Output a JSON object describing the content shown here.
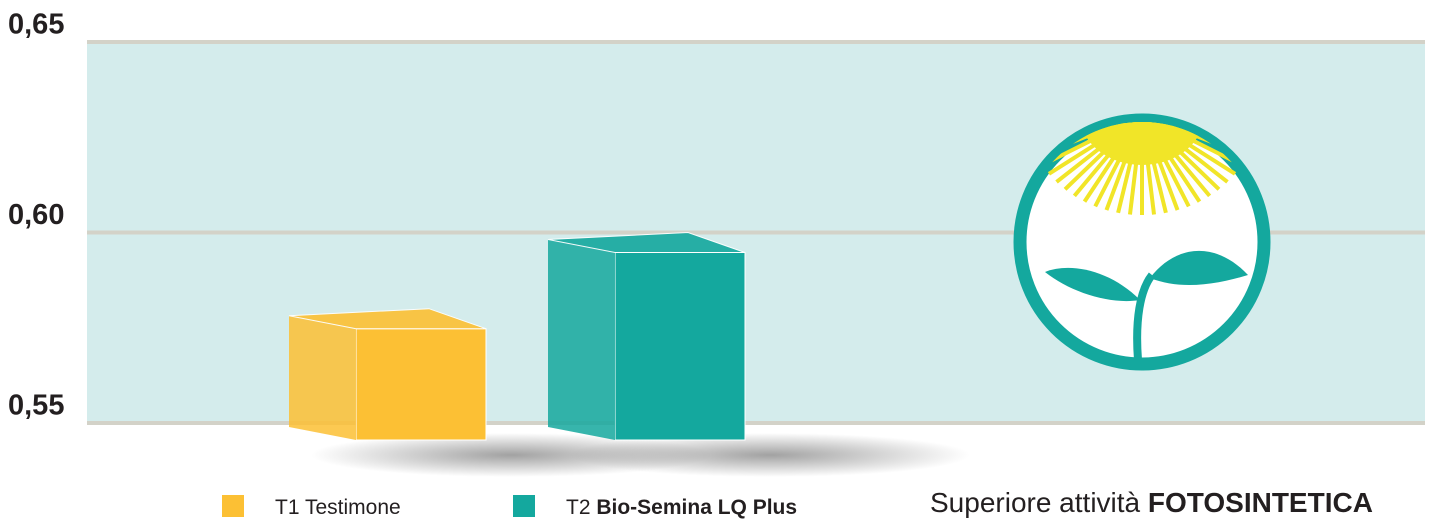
{
  "chart_data": {
    "type": "bar3d",
    "categories": [
      "T1 Testimone",
      "T2 Bio-Semina LQ Plus"
    ],
    "series": [
      {
        "name": "T1 Testimone",
        "color": "#fcc034",
        "values": [
          0.58,
          null
        ]
      },
      {
        "name": "T2 Bio-Semina LQ Plus",
        "color": "#14a89e",
        "values": [
          null,
          0.6
        ],
        "bold": true
      }
    ],
    "ylim": [
      0.55,
      0.65
    ],
    "yticks": [
      {
        "value": 0.55,
        "label": "0,55"
      },
      {
        "value": 0.6,
        "label": "0,60"
      },
      {
        "value": 0.65,
        "label": "0,65"
      }
    ],
    "grid": true,
    "annotation": "Superiore attività FOTOSINTETICA"
  }
}
